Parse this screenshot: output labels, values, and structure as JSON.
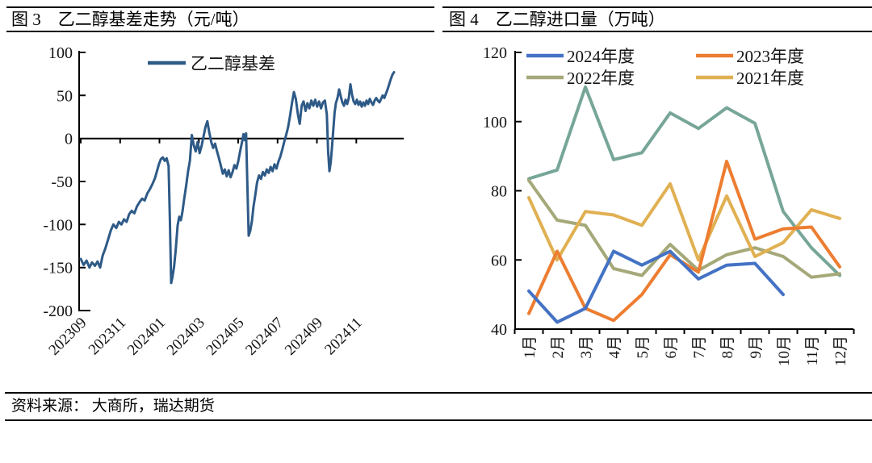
{
  "header": {
    "left_title": "图 3　乙二醇基差走势（元/吨）",
    "right_title": "图 4　乙二醇进口量（万吨）"
  },
  "footer": {
    "source": "资料来源： 大商所，瑞达期货"
  },
  "chart_data": [
    {
      "id": "basis",
      "type": "line",
      "title": "乙二醇基差走势（元/吨）",
      "ylabel": "元/吨",
      "ylim": [
        -200,
        100
      ],
      "grid": false,
      "legend_position": "top-center",
      "y_ticks": [
        "100",
        "50",
        "0",
        "-50",
        "-100",
        "-150",
        "-200"
      ],
      "y_tick_values": [
        100,
        50,
        0,
        -50,
        -100,
        -150,
        -200
      ],
      "x_labels": [
        "202309",
        "202311",
        "202401",
        "202403",
        "202405",
        "202407",
        "202409",
        "202411"
      ],
      "legend": [
        {
          "label": "乙二醇基差",
          "color": "#2E5A87"
        }
      ],
      "series": [
        {
          "name": "乙二醇基差",
          "color": "#2E5A87",
          "points": [
            [
              0,
              -140
            ],
            [
              0.9,
              -147
            ],
            [
              1.8,
              -142
            ],
            [
              2.7,
              -150
            ],
            [
              3.5,
              -144
            ],
            [
              4.4,
              -148
            ],
            [
              5.2,
              -143
            ],
            [
              6,
              -150
            ],
            [
              6.8,
              -136
            ],
            [
              7.6,
              -128
            ],
            [
              8.5,
              -117
            ],
            [
              9.3,
              -107
            ],
            [
              10.1,
              -100
            ],
            [
              11,
              -104
            ],
            [
              11.8,
              -97
            ],
            [
              12.6,
              -100
            ],
            [
              13.4,
              -94
            ],
            [
              14.2,
              -97
            ],
            [
              15,
              -88
            ],
            [
              15.8,
              -84
            ],
            [
              16.6,
              -87
            ],
            [
              17.4,
              -79
            ],
            [
              18.2,
              -74
            ],
            [
              19,
              -70
            ],
            [
              19.8,
              -72
            ],
            [
              20.6,
              -64
            ],
            [
              21.4,
              -59
            ],
            [
              22.2,
              -53
            ],
            [
              23,
              -46
            ],
            [
              23.6,
              -38
            ],
            [
              24.2,
              -30
            ],
            [
              24.8,
              -24
            ],
            [
              25.4,
              -22
            ],
            [
              26,
              -26
            ],
            [
              26.6,
              -23
            ],
            [
              27.2,
              -32
            ],
            [
              27.6,
              -95
            ],
            [
              28,
              -168
            ],
            [
              28.4,
              -161
            ],
            [
              28.9,
              -149
            ],
            [
              29.4,
              -130
            ],
            [
              30,
              -101
            ],
            [
              30.5,
              -91
            ],
            [
              31,
              -95
            ],
            [
              31.5,
              -85
            ],
            [
              32,
              -71
            ],
            [
              32.6,
              -56
            ],
            [
              33.2,
              -39
            ],
            [
              33.8,
              -26
            ],
            [
              34.4,
              4
            ],
            [
              35,
              -8
            ],
            [
              35.6,
              -15
            ],
            [
              36.2,
              -4
            ],
            [
              36.8,
              -17
            ],
            [
              37.4,
              -9
            ],
            [
              38,
              2
            ],
            [
              38.6,
              13
            ],
            [
              39.2,
              20
            ],
            [
              39.8,
              7
            ],
            [
              40.4,
              -4
            ],
            [
              41,
              -11
            ],
            [
              41.6,
              -6
            ],
            [
              42.2,
              -15
            ],
            [
              42.8,
              -23
            ],
            [
              43.4,
              -32
            ],
            [
              44,
              -41
            ],
            [
              44.6,
              -36
            ],
            [
              45.2,
              -44
            ],
            [
              45.8,
              -37
            ],
            [
              46.4,
              -45
            ],
            [
              47,
              -39
            ],
            [
              47.6,
              -31
            ],
            [
              48.2,
              -35
            ],
            [
              48.8,
              -26
            ],
            [
              49.4,
              -14
            ],
            [
              50,
              -3
            ],
            [
              50.4,
              5
            ],
            [
              50.8,
              -2
            ],
            [
              51.2,
              6
            ],
            [
              51.6,
              -55
            ],
            [
              52,
              -113
            ],
            [
              52.5,
              -107
            ],
            [
              53,
              -96
            ],
            [
              53.5,
              -79
            ],
            [
              54,
              -67
            ],
            [
              54.6,
              -51
            ],
            [
              55.2,
              -43
            ],
            [
              55.8,
              -47
            ],
            [
              56.4,
              -39
            ],
            [
              57,
              -43
            ],
            [
              57.6,
              -36
            ],
            [
              58.2,
              -40
            ],
            [
              58.8,
              -33
            ],
            [
              59.4,
              -38
            ],
            [
              60,
              -30
            ],
            [
              60.6,
              -35
            ],
            [
              61.2,
              -27
            ],
            [
              61.8,
              -21
            ],
            [
              62.4,
              -13
            ],
            [
              63,
              -4
            ],
            [
              63.6,
              4
            ],
            [
              64.2,
              13
            ],
            [
              64.8,
              26
            ],
            [
              65.4,
              41
            ],
            [
              66,
              54
            ],
            [
              66.6,
              46
            ],
            [
              67.2,
              29
            ],
            [
              67.8,
              17
            ],
            [
              68.4,
              38
            ],
            [
              69,
              43
            ],
            [
              69.6,
              32
            ],
            [
              70.2,
              41
            ],
            [
              70.8,
              35
            ],
            [
              71.4,
              44
            ],
            [
              72,
              38
            ],
            [
              72.6,
              45
            ],
            [
              73.2,
              37
            ],
            [
              73.8,
              43
            ],
            [
              74.4,
              35
            ],
            [
              75,
              42
            ],
            [
              75.6,
              44
            ],
            [
              76.2,
              28
            ],
            [
              76.6,
              -15
            ],
            [
              77,
              -38
            ],
            [
              77.4,
              -28
            ],
            [
              77.8,
              -10
            ],
            [
              78.2,
              10
            ],
            [
              78.6,
              30
            ],
            [
              79,
              41
            ],
            [
              79.5,
              47
            ],
            [
              80,
              57
            ],
            [
              80.5,
              49
            ],
            [
              81,
              42
            ],
            [
              81.5,
              38
            ],
            [
              82,
              45
            ],
            [
              82.5,
              40
            ],
            [
              83,
              47
            ],
            [
              83.5,
              63
            ],
            [
              84,
              51
            ],
            [
              84.5,
              43
            ],
            [
              85,
              40
            ],
            [
              85.5,
              45
            ],
            [
              86,
              39
            ],
            [
              86.5,
              43
            ],
            [
              87,
              37
            ],
            [
              87.5,
              42
            ],
            [
              88,
              38
            ],
            [
              88.5,
              44
            ],
            [
              89,
              40
            ],
            [
              89.5,
              46
            ],
            [
              90,
              42
            ],
            [
              90.5,
              39
            ],
            [
              91,
              44
            ],
            [
              91.5,
              47
            ],
            [
              92,
              44
            ],
            [
              92.5,
              42
            ],
            [
              93,
              46
            ],
            [
              93.5,
              50
            ],
            [
              94,
              47
            ],
            [
              94.5,
              52
            ],
            [
              95,
              57
            ],
            [
              95.5,
              63
            ],
            [
              96,
              69
            ],
            [
              96.5,
              74
            ],
            [
              97,
              77
            ]
          ]
        }
      ]
    },
    {
      "id": "imports",
      "type": "line",
      "title": "乙二醇进口量（万吨）",
      "ylabel": "万吨",
      "ylim": [
        40,
        120
      ],
      "grid": false,
      "legend_position": "top",
      "y_ticks": [
        "120",
        "100",
        "80",
        "60",
        "40"
      ],
      "y_tick_values": [
        120,
        100,
        80,
        60,
        40
      ],
      "categories": [
        "1月",
        "2月",
        "3月",
        "4月",
        "5月",
        "6月",
        "7月",
        "8月",
        "9月",
        "10月",
        "11月",
        "12月"
      ],
      "legend": [
        {
          "label": "2024年度",
          "color": "#4472C4"
        },
        {
          "label": "2023年度",
          "color": "#ED7D31"
        },
        {
          "label": "2022年度",
          "color": "#A5A878"
        },
        {
          "label": "2021年度",
          "color": "#E0B052"
        }
      ],
      "series": [
        {
          "name": "",
          "color": "#77A699",
          "values": [
            83.5,
            86,
            110,
            89,
            91,
            102.5,
            98,
            104,
            99.5,
            74,
            63.5,
            55.5
          ]
        },
        {
          "name": "2022年度",
          "color": "#A5A878",
          "values": [
            83,
            71.5,
            70,
            57.5,
            55.5,
            64.5,
            57,
            61.5,
            63.5,
            61,
            55,
            56
          ]
        },
        {
          "name": "2021年度",
          "color": "#E0B052",
          "values": [
            78,
            60,
            74,
            73,
            70,
            82,
            60,
            78.5,
            61,
            65,
            74.5,
            72
          ]
        },
        {
          "name": "2023年度",
          "color": "#ED7D31",
          "values": [
            44.5,
            62.5,
            46,
            42.5,
            50,
            61.5,
            56.5,
            88.5,
            66,
            69,
            69.5,
            58
          ]
        },
        {
          "name": "2024年度",
          "color": "#4472C4",
          "values": [
            51,
            42,
            46,
            62.5,
            58.5,
            62.5,
            54.5,
            58.5,
            59,
            50
          ]
        }
      ]
    }
  ]
}
